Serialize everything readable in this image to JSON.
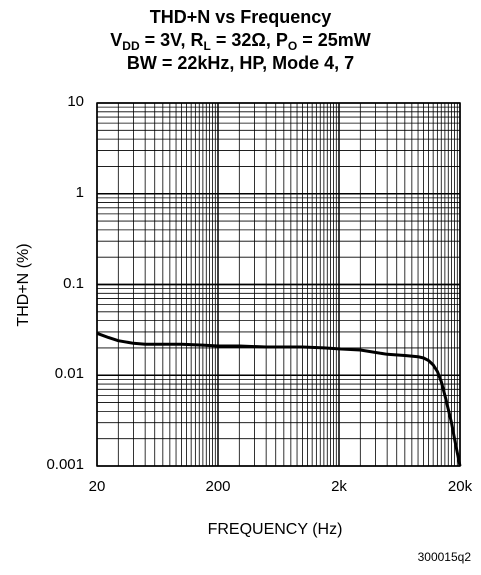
{
  "title_lines": {
    "line1": "THD+N vs Frequency",
    "line2_vdd": "V",
    "line2_vdd_sub": "DD",
    "line2_a": " = 3V, R",
    "line2_rl_sub": "L",
    "line2_b": " = 32Ω, P",
    "line2_po_sub": "O",
    "line2_c": " = 25mW",
    "line3": "BW = 22kHz, HP, Mode 4, 7"
  },
  "figure_id": "300015q2",
  "chart_data": {
    "type": "line",
    "xlabel": "FREQUENCY (Hz)",
    "ylabel": "THD+N (%)",
    "x_scale": "log",
    "y_scale": "log",
    "xlim": [
      20,
      20000
    ],
    "ylim": [
      0.001,
      10
    ],
    "grid": true,
    "x_tick_labels": [
      "20",
      "200",
      "2k",
      "20k"
    ],
    "y_tick_labels": [
      "10",
      "1",
      "0.1",
      "0.01",
      "0.001"
    ],
    "series": [
      {
        "x": [
          20,
          25,
          30,
          40,
          50,
          70,
          100,
          150,
          200,
          300,
          500,
          700,
          1000,
          1500,
          2000,
          3000,
          5000,
          7000,
          9000,
          10000,
          11000,
          12000,
          13000,
          14000,
          15000,
          16000,
          17000,
          18000,
          19000,
          20000
        ],
        "y": [
          0.029,
          0.026,
          0.024,
          0.0225,
          0.022,
          0.022,
          0.022,
          0.0215,
          0.021,
          0.021,
          0.0205,
          0.0205,
          0.0205,
          0.02,
          0.0195,
          0.019,
          0.017,
          0.0165,
          0.016,
          0.0155,
          0.0145,
          0.013,
          0.011,
          0.0085,
          0.006,
          0.0042,
          0.003,
          0.002,
          0.0014,
          0.001
        ]
      }
    ]
  }
}
